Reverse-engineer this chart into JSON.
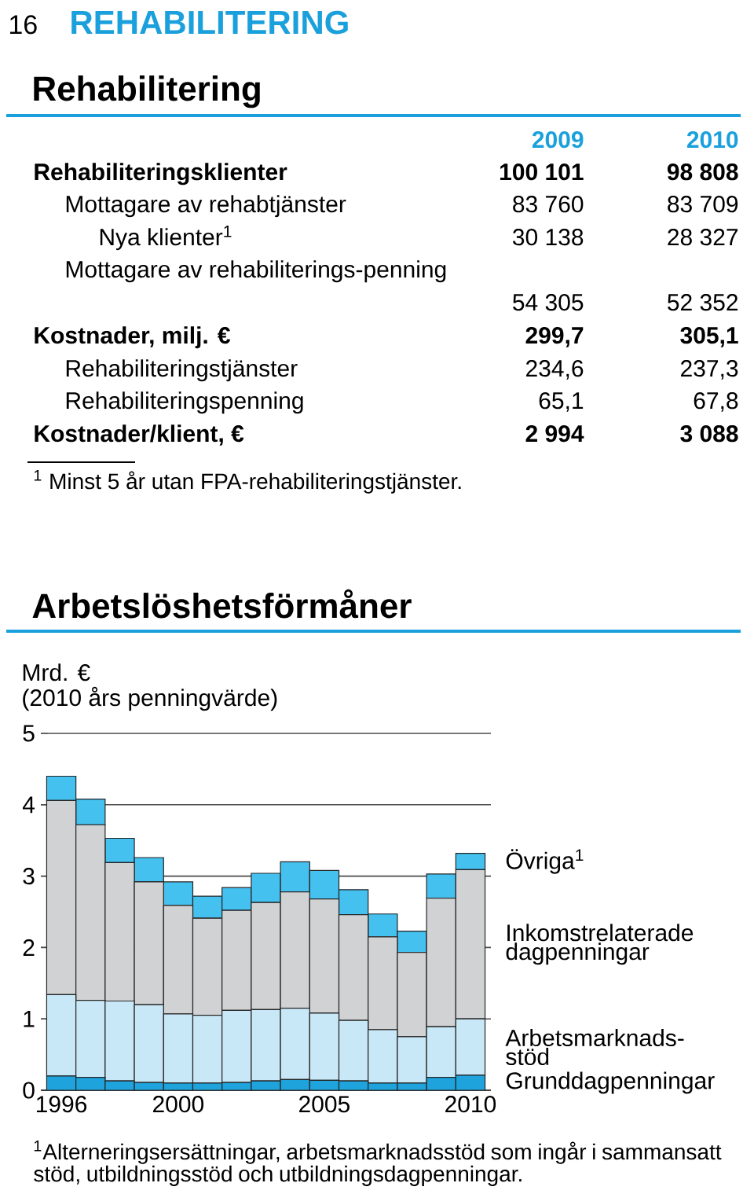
{
  "chart_data": [
    {
      "type": "other",
      "title": "Rehabilitering",
      "annotations": [
        "16",
        "REHABILITERING",
        "$^{1}$ Minst 5 år utan FPA-rehabiliteringstjänster."
      ],
      "categories": [
        "Rehabiliteringsklienter",
        "Mottagare av rehabtjänster",
        "Nya klienter$^{1}$",
        "Mottagare av rehabiliterings-penning",
        "Kostnader, milj. €",
        "Rehabiliteringstjänster",
        "Rehabiliteringspenning",
        "Kostnader/klient, €"
      ],
      "series": [
        {
          "name": "2009",
          "values": [
            100101,
            83760,
            30138,
            54305,
            299.7,
            234.6,
            65.1,
            2994
          ],
          "value_labels": [
            "100 101",
            "83 760",
            "30 138",
            "54 305",
            "299,7",
            "234,6",
            "65,1",
            "2 994"
          ]
        },
        {
          "name": "2010",
          "values": [
            98808,
            83709,
            28327,
            52352,
            305.1,
            237.3,
            67.8,
            3088
          ],
          "value_labels": [
            "98 808",
            "83 709",
            "28 327",
            "52 352",
            "305,1",
            "237,3",
            "67,8",
            "3 088"
          ]
        }
      ]
    },
    {
      "type": "bar",
      "stacked": true,
      "title": "Arbetslöshetsförmåner",
      "ylabel": "Mrd. €",
      "subtitle": "(2010 års penningvärde)",
      "x": [
        1996,
        1997,
        1998,
        1999,
        2000,
        2001,
        2002,
        2003,
        2004,
        2005,
        2006,
        2007,
        2008,
        2009,
        2010
      ],
      "xlim": [
        1995.3,
        2010.7
      ],
      "xticks": [
        1996,
        2000,
        2005,
        2010
      ],
      "ylim": [
        0,
        5
      ],
      "yticks": [
        0,
        1,
        2,
        3,
        4,
        5
      ],
      "grid": "y",
      "series": [
        {
          "name": "Grunddagpenningar",
          "color": "#1ea3dc",
          "values": [
            0.2,
            0.18,
            0.13,
            0.11,
            0.1,
            0.1,
            0.11,
            0.13,
            0.15,
            0.14,
            0.13,
            0.1,
            0.1,
            0.18,
            0.21
          ]
        },
        {
          "name": "Arbetsmarknads-stöd",
          "color": "#c9e8f7",
          "values": [
            1.14,
            1.08,
            1.12,
            1.09,
            0.97,
            0.95,
            1.01,
            1.0,
            1.0,
            0.94,
            0.85,
            0.75,
            0.65,
            0.71,
            0.79
          ]
        },
        {
          "name": "Inkomstrelaterade dagpenningar",
          "color": "#d1d2d4",
          "values": [
            2.72,
            2.46,
            1.94,
            1.72,
            1.52,
            1.36,
            1.4,
            1.5,
            1.63,
            1.6,
            1.48,
            1.3,
            1.18,
            1.8,
            2.09
          ]
        },
        {
          "name": "Övriga$^{1}$",
          "color": "#45c1ef",
          "values": [
            0.34,
            0.36,
            0.34,
            0.34,
            0.33,
            0.31,
            0.32,
            0.41,
            0.42,
            0.4,
            0.35,
            0.32,
            0.3,
            0.34,
            0.23
          ]
        }
      ],
      "annotations": [
        "$^{1}$Alterneringsersättningar, arbetsmarknadsstöd som ingår i sammansatt stöd, utbildningsstöd och utbildningsdagpenningar."
      ]
    }
  ]
}
